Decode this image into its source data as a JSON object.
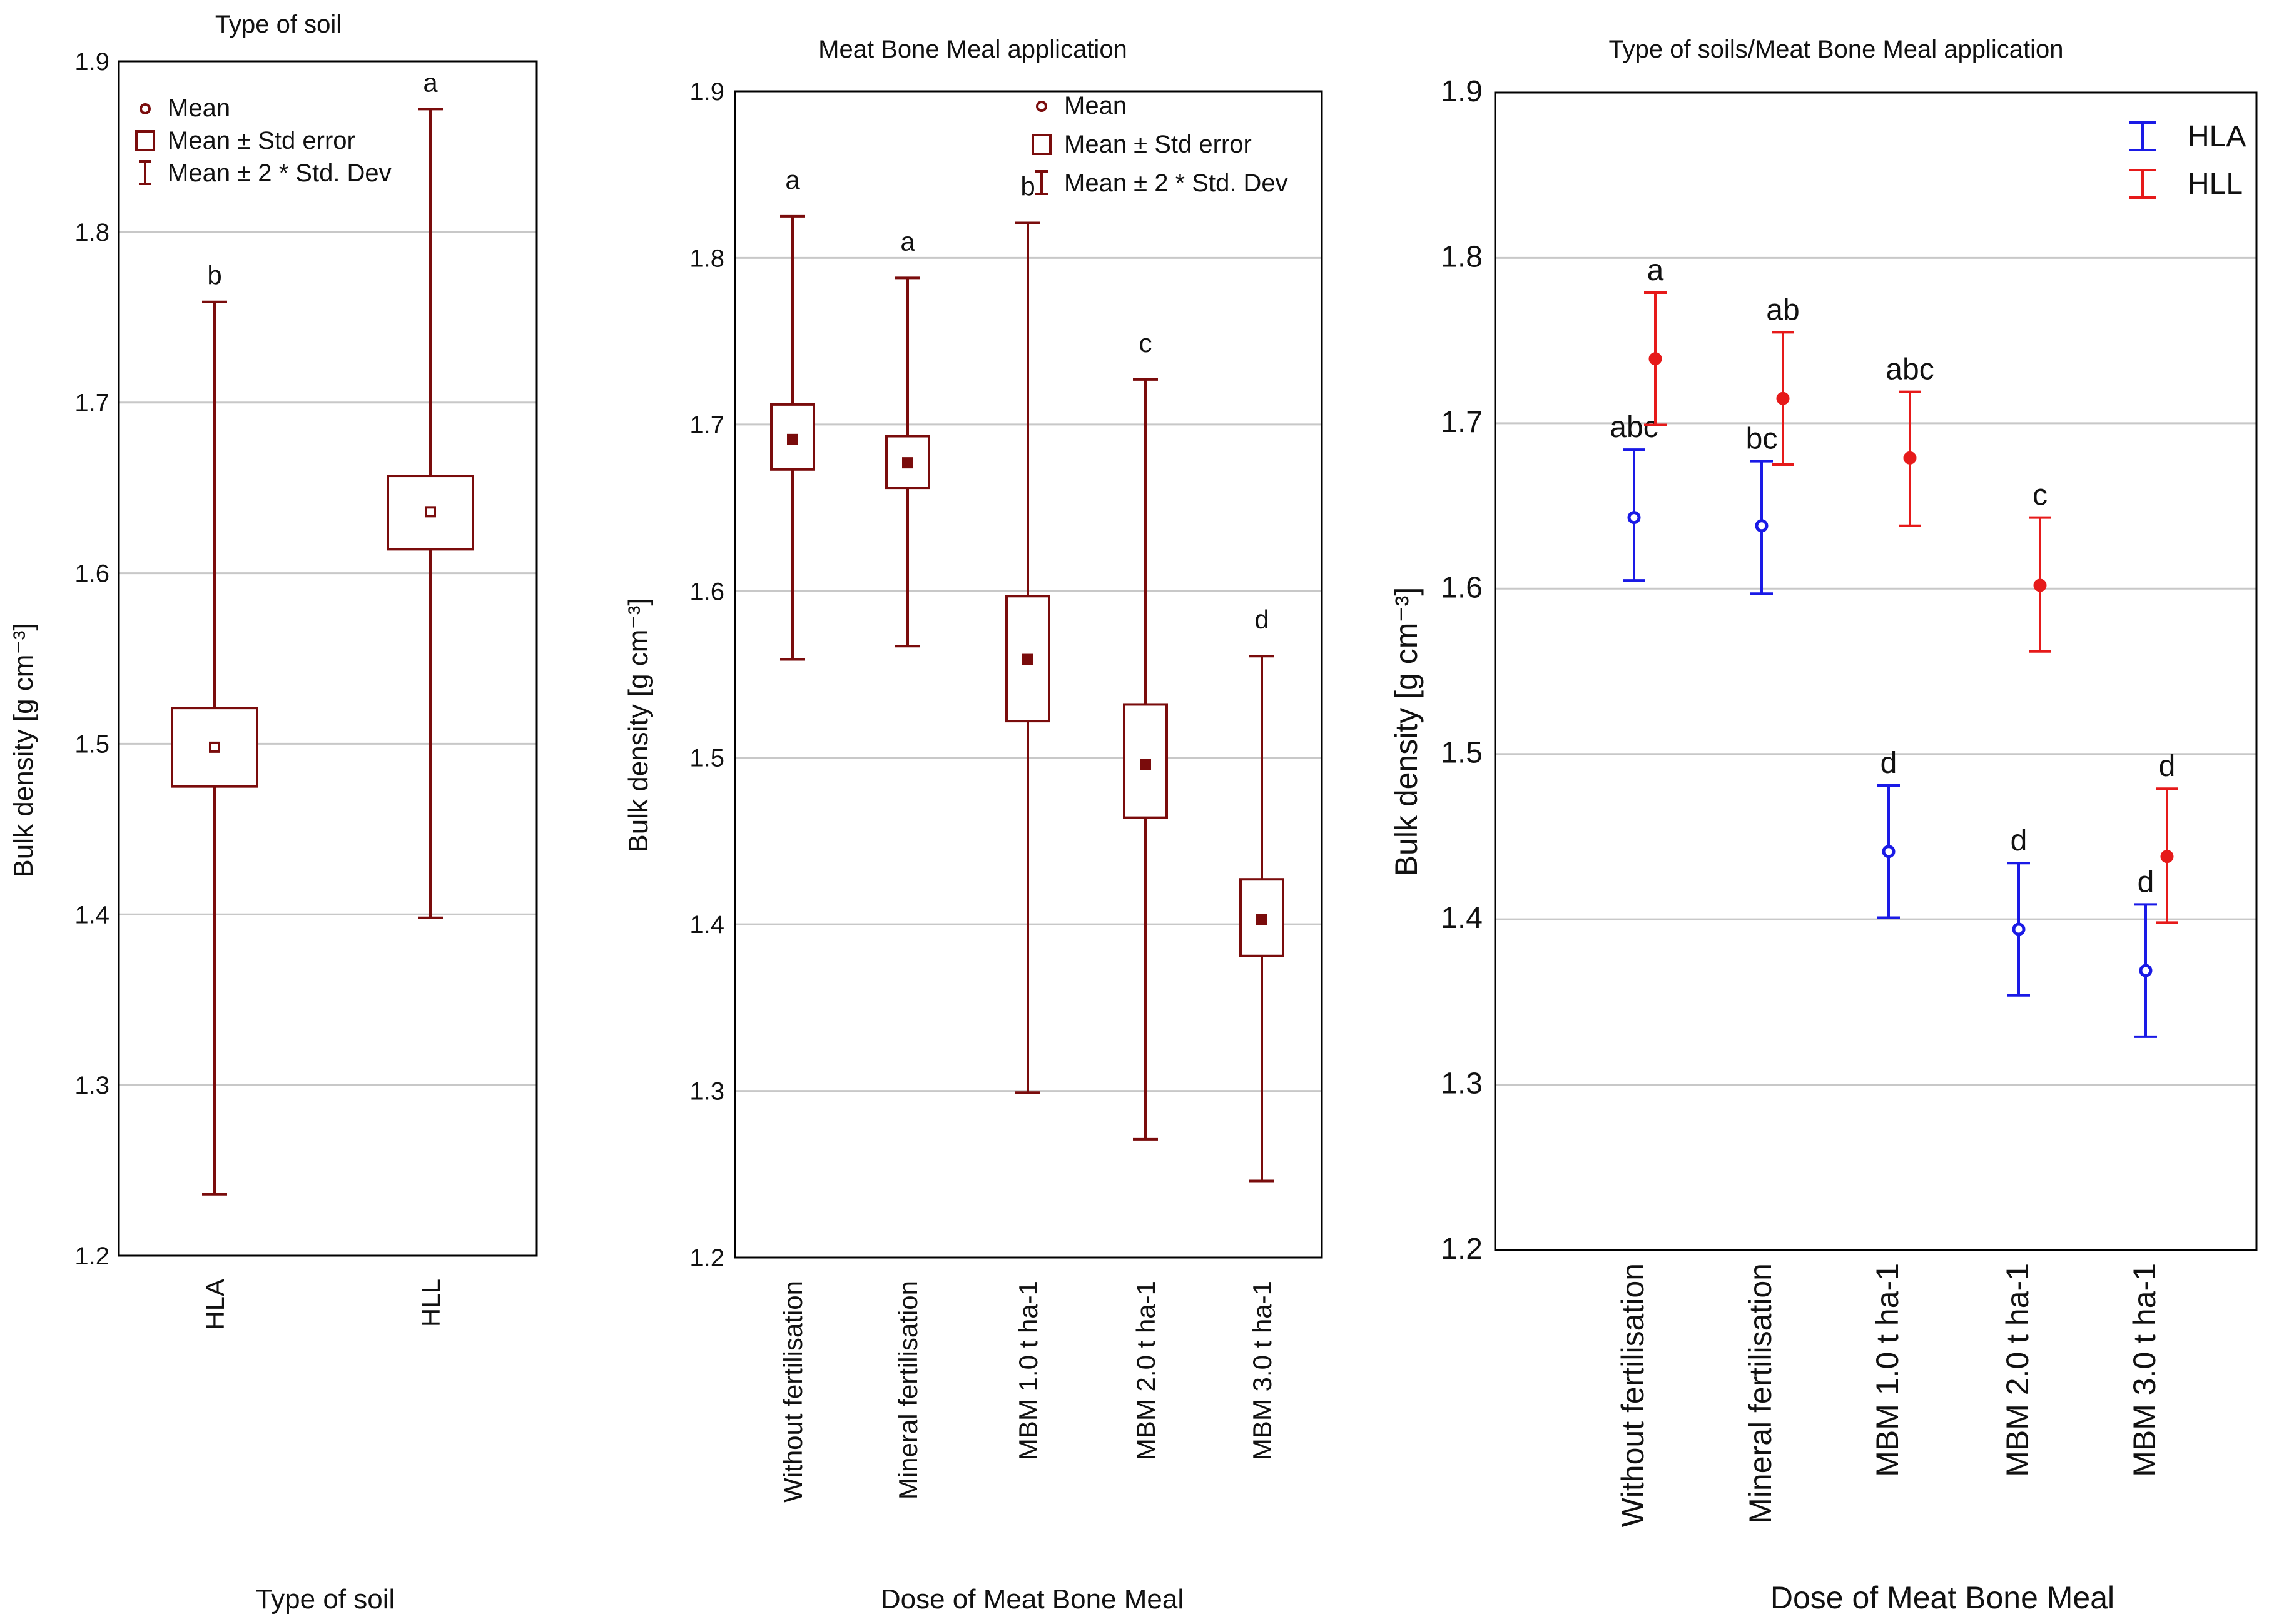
{
  "colors": {
    "maroon": "#7a0c0c",
    "blue": "#1a1ae6",
    "red": "#e61a1a"
  },
  "chart_data": [
    {
      "type": "box",
      "title": "Type of soil",
      "xlabel": "Type of soil",
      "ylabel": "Bulk density [g cm⁻³]",
      "ylim": [
        1.2,
        1.9
      ],
      "yticks": [
        "1.2",
        "1.3",
        "1.4",
        "1.5",
        "1.6",
        "1.7",
        "1.8",
        "1.9"
      ],
      "categories": [
        "HLA",
        "HLL"
      ],
      "series": [
        {
          "name": "Bulk density",
          "mean": [
            1.498,
            1.636
          ],
          "se_low": [
            1.475,
            1.614
          ],
          "se_high": [
            1.521,
            1.657
          ],
          "sd2_low": [
            1.236,
            1.398
          ],
          "sd2_high": [
            1.759,
            1.872
          ],
          "letters": [
            "b",
            "a"
          ]
        }
      ],
      "legend": [
        "Mean",
        "Mean ± Std error",
        "Mean ± 2 * Std. Dev"
      ]
    },
    {
      "type": "box",
      "title": "Meat Bone Meal application",
      "xlabel": "Dose of Meat Bone Meal",
      "ylabel": "Bulk density [g cm⁻³]",
      "ylim": [
        1.2,
        1.9
      ],
      "yticks": [
        "1.2",
        "1.3",
        "1.4",
        "1.5",
        "1.6",
        "1.7",
        "1.8",
        "1.9"
      ],
      "categories": [
        "Without fertilisation",
        "Mineral fertilisation",
        "MBM 1.0 t ha-1",
        "MBM 2.0 t ha-1",
        "MBM 3.0 t ha-1"
      ],
      "series": [
        {
          "name": "Bulk density",
          "mean": [
            1.691,
            1.677,
            1.559,
            1.496,
            1.403
          ],
          "se_low": [
            1.673,
            1.662,
            1.522,
            1.464,
            1.381
          ],
          "se_high": [
            1.712,
            1.693,
            1.597,
            1.532,
            1.427
          ],
          "sd2_low": [
            1.559,
            1.567,
            1.299,
            1.271,
            1.246
          ],
          "sd2_high": [
            1.825,
            1.788,
            1.821,
            1.727,
            1.561
          ],
          "letters": [
            "a",
            "a",
            "b",
            "c",
            "d"
          ]
        }
      ],
      "legend": [
        "Mean",
        "Mean ± Std error",
        "Mean ± 2 * Std. Dev"
      ]
    },
    {
      "type": "errorbar",
      "title": "Type of soils/Meat Bone Meal application",
      "xlabel": "Dose of Meat Bone Meal",
      "ylabel": "Bulk density [g cm⁻³]",
      "ylim": [
        1.2,
        1.9
      ],
      "yticks": [
        "1.2",
        "1.3",
        "1.4",
        "1.5",
        "1.6",
        "1.7",
        "1.8",
        "1.9"
      ],
      "categories": [
        "Without fertilisation",
        "Mineral fertilisation",
        "MBM 1.0 t ha-1",
        "MBM 2.0 t ha-1",
        "MBM 3.0 t ha-1"
      ],
      "series": [
        {
          "name": "HLA",
          "mean": [
            1.643,
            1.638,
            1.441,
            1.394,
            1.369
          ],
          "low": [
            1.605,
            1.597,
            1.401,
            1.354,
            1.329
          ],
          "high": [
            1.684,
            1.677,
            1.481,
            1.434,
            1.409
          ],
          "letters": [
            "abc",
            "bc",
            "d",
            "d",
            "d"
          ]
        },
        {
          "name": "HLL",
          "mean": [
            1.739,
            1.715,
            1.679,
            1.602,
            1.438
          ],
          "low": [
            1.699,
            1.675,
            1.638,
            1.562,
            1.398
          ],
          "high": [
            1.779,
            1.755,
            1.719,
            1.643,
            1.479
          ],
          "letters": [
            "a",
            "ab",
            "abc",
            "c",
            "d"
          ]
        }
      ],
      "legend": [
        "HLA",
        "HLL"
      ]
    }
  ]
}
